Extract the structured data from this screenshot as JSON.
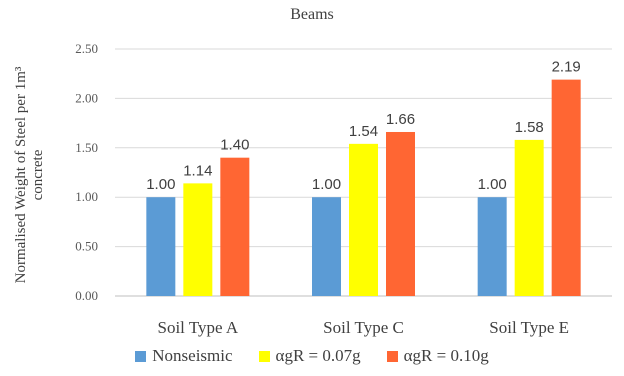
{
  "chart_data": {
    "type": "bar",
    "title": "Beams",
    "ylabel": "Normalised Weight of Steel per 1m³ concrete",
    "xlabel": "",
    "categories": [
      "Soil Type A",
      "Soil Type C",
      "Soil Type E"
    ],
    "series": [
      {
        "name": "Nonseismic",
        "color": "#5b9bd5",
        "values": [
          1.0,
          1.0,
          1.0
        ],
        "labels": [
          "1.00",
          "1.00",
          "1.00"
        ]
      },
      {
        "name": "αgR = 0.07g",
        "color": "#ffff00",
        "values": [
          1.14,
          1.54,
          1.58
        ],
        "labels": [
          "1.14",
          "1.54",
          "1.58"
        ]
      },
      {
        "name": "αgR = 0.10g",
        "color": "#ff6633",
        "values": [
          1.4,
          1.66,
          2.19
        ],
        "labels": [
          "1.40",
          "1.66",
          "2.19"
        ]
      }
    ],
    "ylim": [
      0,
      2.5
    ],
    "yticks": [
      "0.00",
      "0.50",
      "1.00",
      "1.50",
      "2.00",
      "2.50"
    ],
    "grid": true,
    "legend_position": "bottom"
  }
}
